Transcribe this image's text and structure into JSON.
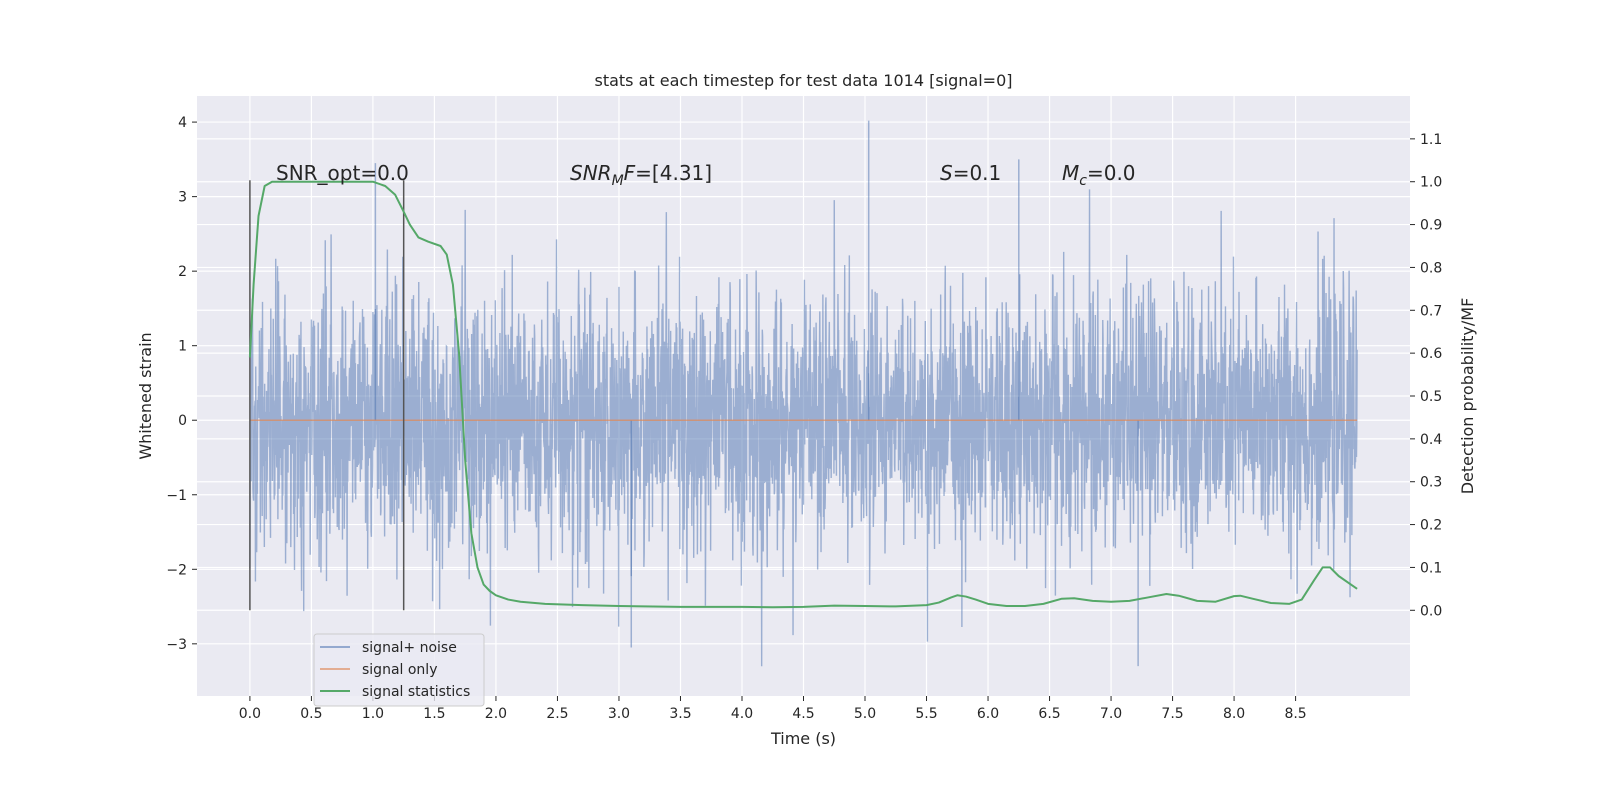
{
  "chart_data": {
    "type": "line",
    "title": "stats at each timestep for test data 1014 [signal=0]",
    "xlabel": "Time (s)",
    "ylabel": "Whitened strain",
    "y2label": "Detection probability/MF",
    "xlim": [
      -0.43,
      9.43
    ],
    "ylim": [
      -3.7,
      4.35
    ],
    "y2lim": [
      -0.2,
      1.2
    ],
    "x_ticks": [
      "0.0",
      "0.5",
      "1.0",
      "1.5",
      "2.0",
      "2.5",
      "3.0",
      "3.5",
      "4.0",
      "4.5",
      "5.0",
      "5.5",
      "6.0",
      "6.5",
      "7.0",
      "7.5",
      "8.0",
      "8.5"
    ],
    "y_ticks": [
      "−3",
      "−2",
      "−1",
      "0",
      "1",
      "2",
      "3",
      "4"
    ],
    "y2_ticks": [
      "0.0",
      "0.1",
      "0.2",
      "0.3",
      "0.4",
      "0.5",
      "0.6",
      "0.7",
      "0.8",
      "0.9",
      "1.0",
      "1.1"
    ],
    "grid": true,
    "background": "#eaeaf2",
    "annotations": [
      {
        "text": "SNR_opt=0.0",
        "style": "plain"
      },
      {
        "text": "SNR",
        "sub": "M",
        "tail": "F=[4.31]",
        "style": "italic"
      },
      {
        "text": "S",
        "tail": "=0.1",
        "style": "italic-first"
      },
      {
        "text": "M",
        "sub": "c",
        "tail": "=0.0",
        "style": "italic-first"
      }
    ],
    "vlines": [
      {
        "x": 0.0,
        "y_range": [
          -2.55,
          3.22
        ]
      },
      {
        "x": 1.25,
        "y_range": [
          -2.55,
          3.22
        ]
      }
    ],
    "series": [
      {
        "name": "signal+ noise",
        "color": "#4c72b0",
        "alpha": 0.5,
        "x_range": [
          0.0,
          9.0
        ],
        "envelope": {
          "typical_min": -1.45,
          "typical_max": 1.45,
          "peak_max": 4.02,
          "peak_min": -3.3
        }
      },
      {
        "name": "signal only",
        "color": "#dd8452",
        "alpha": 0.5,
        "x": [
          0.0,
          9.0
        ],
        "y": [
          0.0,
          0.0
        ]
      },
      {
        "name": "signal statistics",
        "color": "#55a868",
        "axis": "right",
        "x": [
          0.0,
          0.03,
          0.07,
          0.12,
          0.18,
          0.25,
          0.35,
          0.5,
          0.7,
          0.9,
          1.0,
          1.1,
          1.18,
          1.25,
          1.3,
          1.37,
          1.45,
          1.55,
          1.6,
          1.65,
          1.7,
          1.75,
          1.8,
          1.85,
          1.9,
          1.95,
          2.0,
          2.1,
          2.2,
          2.4,
          2.7,
          3.0,
          3.5,
          4.0,
          4.25,
          4.5,
          4.75,
          5.0,
          5.25,
          5.5,
          5.6,
          5.7,
          5.75,
          5.82,
          5.9,
          6.0,
          6.15,
          6.3,
          6.45,
          6.6,
          6.7,
          6.85,
          7.0,
          7.15,
          7.3,
          7.45,
          7.55,
          7.7,
          7.85,
          8.0,
          8.05,
          8.15,
          8.3,
          8.45,
          8.55,
          8.65,
          8.72,
          8.78,
          8.85,
          8.95,
          9.0
        ],
        "y": [
          0.59,
          0.76,
          0.92,
          0.99,
          1.0,
          1.0,
          1.0,
          1.0,
          1.0,
          1.0,
          1.0,
          0.99,
          0.97,
          0.93,
          0.9,
          0.87,
          0.86,
          0.85,
          0.83,
          0.76,
          0.6,
          0.35,
          0.18,
          0.1,
          0.06,
          0.045,
          0.035,
          0.025,
          0.02,
          0.015,
          0.012,
          0.01,
          0.008,
          0.008,
          0.007,
          0.008,
          0.011,
          0.01,
          0.009,
          0.012,
          0.018,
          0.03,
          0.035,
          0.032,
          0.025,
          0.015,
          0.01,
          0.01,
          0.015,
          0.027,
          0.028,
          0.022,
          0.02,
          0.022,
          0.03,
          0.038,
          0.034,
          0.022,
          0.02,
          0.033,
          0.034,
          0.027,
          0.017,
          0.015,
          0.025,
          0.07,
          0.1,
          0.1,
          0.08,
          0.06,
          0.05
        ]
      }
    ],
    "legend": {
      "placement": "lower-left"
    }
  }
}
